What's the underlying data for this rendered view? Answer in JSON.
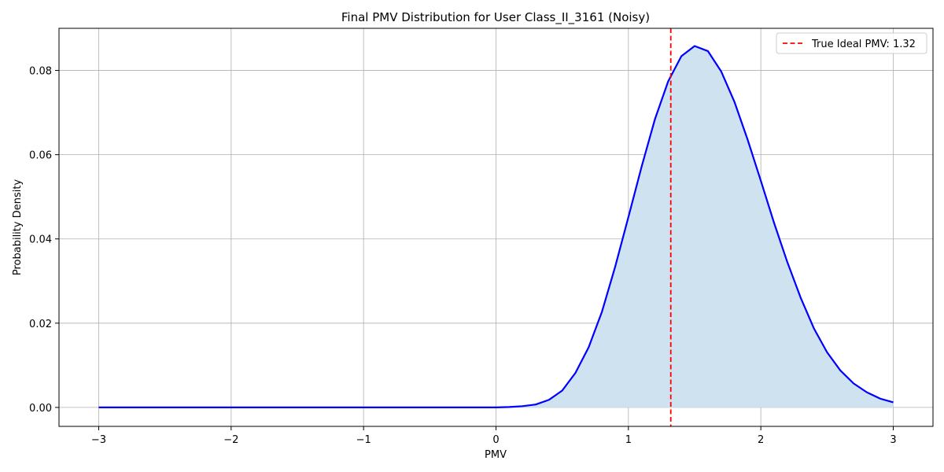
{
  "chart_data": {
    "type": "line",
    "title": "Final PMV Distribution for User Class_II_3161 (Noisy)",
    "xlabel": "PMV",
    "ylabel": "Probability Density",
    "xlim": [
      -3.3,
      3.3
    ],
    "ylim": [
      -0.0045,
      0.09
    ],
    "xticks": [
      -3,
      -2,
      -1,
      0,
      1,
      2,
      3
    ],
    "xtick_labels": [
      "−3",
      "−2",
      "−1",
      "0",
      "1",
      "2",
      "3"
    ],
    "yticks": [
      0.0,
      0.02,
      0.04,
      0.06,
      0.08
    ],
    "ytick_labels": [
      "0.00",
      "0.02",
      "0.04",
      "0.06",
      "0.08"
    ],
    "grid": true,
    "legend_position": "top-right",
    "series": [
      {
        "type": "line",
        "color": "#0000ff",
        "fill": "#cfe2f0",
        "x": [
          -3.0,
          -2.9,
          -2.8,
          -2.7,
          -2.6,
          -2.5,
          -2.4,
          -2.3,
          -2.2,
          -2.1,
          -2.0,
          -1.9,
          -1.8,
          -1.7,
          -1.6,
          -1.5,
          -1.4,
          -1.3,
          -1.2,
          -1.1,
          -1.0,
          -0.9,
          -0.8,
          -0.7,
          -0.6,
          -0.5,
          -0.4,
          -0.3,
          -0.2,
          -0.1,
          0.0,
          0.1,
          0.2,
          0.3,
          0.4,
          0.5,
          0.6,
          0.7,
          0.8,
          0.9,
          1.0,
          1.1,
          1.2,
          1.3,
          1.4,
          1.5,
          1.6,
          1.7,
          1.8,
          1.9,
          2.0,
          2.1,
          2.2,
          2.3,
          2.4,
          2.5,
          2.6,
          2.7,
          2.8,
          2.9,
          3.0
        ],
        "y": [
          0,
          0,
          0,
          0,
          0,
          0,
          0,
          0,
          0,
          0,
          0,
          0,
          0,
          0,
          0,
          0,
          0,
          0,
          0,
          0,
          0,
          0,
          0,
          0,
          0,
          0,
          0,
          0,
          0,
          0,
          0.0,
          0.0001,
          0.0003,
          0.0007,
          0.0018,
          0.004,
          0.0082,
          0.0143,
          0.0227,
          0.0334,
          0.0452,
          0.0572,
          0.0684,
          0.0774,
          0.0834,
          0.0858,
          0.0846,
          0.0798,
          0.0726,
          0.0636,
          0.0538,
          0.0438,
          0.0345,
          0.0261,
          0.0188,
          0.0131,
          0.0088,
          0.0057,
          0.0036,
          0.0021,
          0.0012
        ]
      }
    ],
    "reference_lines": [
      {
        "type": "vertical",
        "x": 1.32,
        "color": "#ff0000",
        "style": "dashed",
        "label": "True Ideal PMV: 1.32"
      }
    ]
  }
}
